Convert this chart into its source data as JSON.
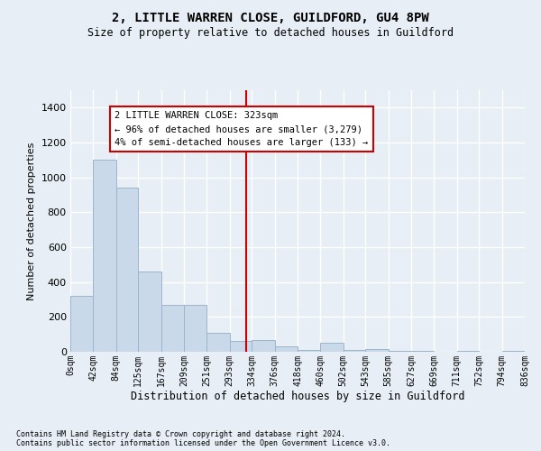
{
  "title": "2, LITTLE WARREN CLOSE, GUILDFORD, GU4 8PW",
  "subtitle": "Size of property relative to detached houses in Guildford",
  "xlabel": "Distribution of detached houses by size in Guildford",
  "ylabel": "Number of detached properties",
  "bar_color": "#c9d9ea",
  "bar_edge_color": "#9ab5cc",
  "background_color": "#e8eef5",
  "plot_bg_color": "#e8eef5",
  "grid_color": "#ffffff",
  "annotation_text": "2 LITTLE WARREN CLOSE: 323sqm\n← 96% of detached houses are smaller (3,279)\n4% of semi-detached houses are larger (133) →",
  "marker_value": 323,
  "marker_color": "#cc0000",
  "ylim": [
    0,
    1500
  ],
  "yticks": [
    0,
    200,
    400,
    600,
    800,
    1000,
    1200,
    1400
  ],
  "bin_edges": [
    0,
    42,
    84,
    125,
    167,
    209,
    251,
    293,
    334,
    376,
    418,
    460,
    502,
    543,
    585,
    627,
    669,
    711,
    752,
    794,
    836
  ],
  "bar_heights": [
    320,
    1100,
    940,
    460,
    270,
    270,
    110,
    60,
    65,
    30,
    10,
    50,
    10,
    15,
    5,
    5,
    0,
    5,
    0,
    5
  ],
  "footnote1": "Contains HM Land Registry data © Crown copyright and database right 2024.",
  "footnote2": "Contains public sector information licensed under the Open Government Licence v3.0."
}
